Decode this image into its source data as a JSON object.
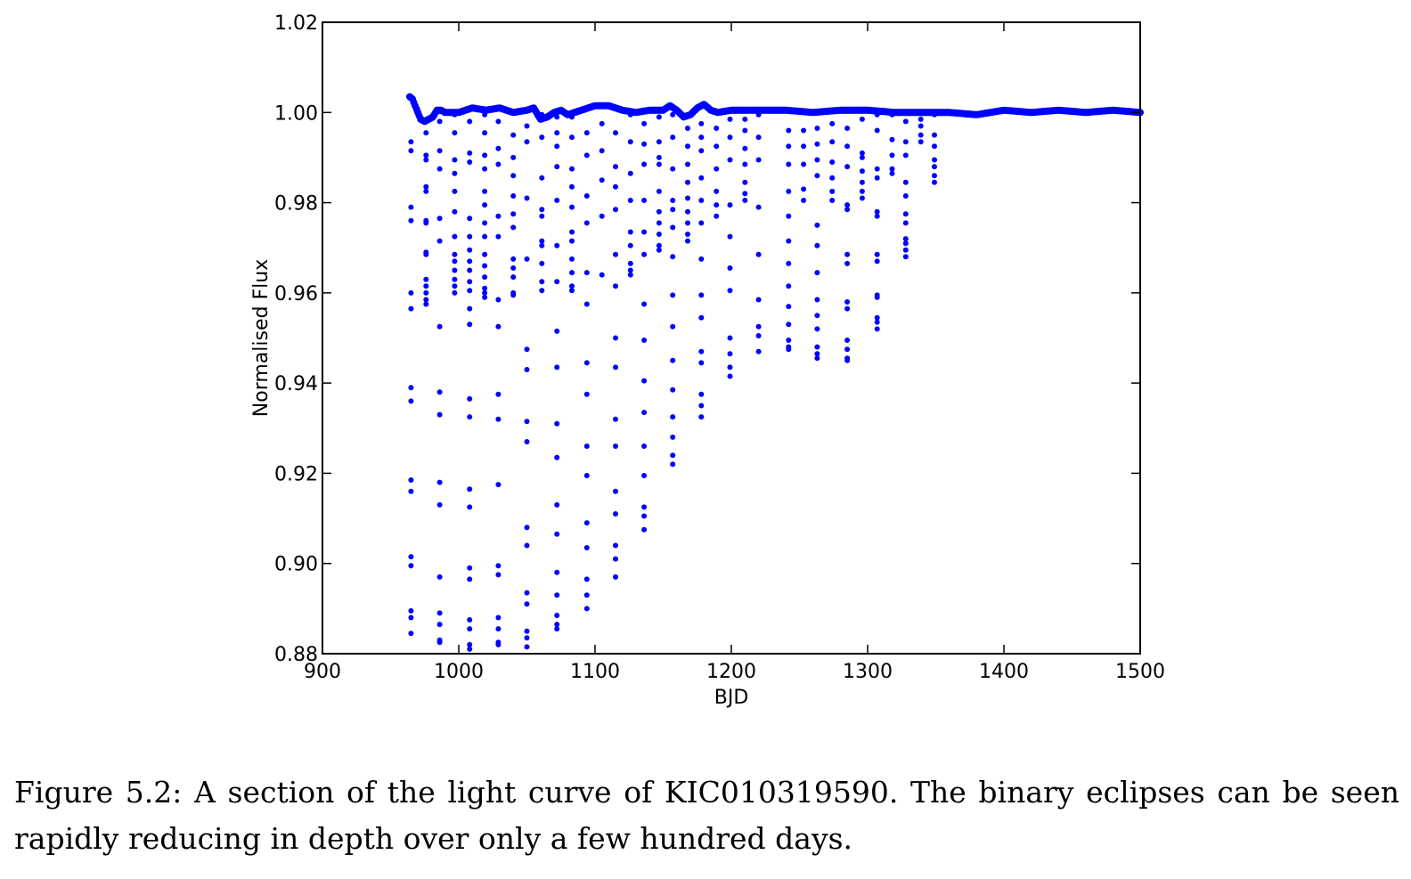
{
  "chart_data": {
    "type": "scatter",
    "xlabel": "BJD",
    "ylabel": "Normalised Flux",
    "xlim": [
      900,
      1500
    ],
    "ylim": [
      0.88,
      1.02
    ],
    "x_ticks": [
      "900",
      "1000",
      "1100",
      "1200",
      "1300",
      "1400",
      "1500"
    ],
    "y_ticks": [
      "0.88",
      "0.90",
      "0.92",
      "0.94",
      "0.96",
      "0.98",
      "1.00",
      "1.02"
    ],
    "grid": false,
    "marker_color": "#0000ff",
    "baseline": {
      "x": [
        964,
        966,
        968,
        970,
        972,
        975,
        978,
        981,
        984,
        987,
        990,
        995,
        1000,
        1010,
        1020,
        1030,
        1040,
        1050,
        1055,
        1060,
        1065,
        1070,
        1075,
        1080,
        1090,
        1100,
        1110,
        1120,
        1130,
        1140,
        1150,
        1155,
        1160,
        1165,
        1170,
        1175,
        1180,
        1185,
        1190,
        1200,
        1220,
        1240,
        1260,
        1280,
        1300,
        1320,
        1340,
        1360,
        1380,
        1400,
        1420,
        1440,
        1460,
        1480,
        1500
      ],
      "y": [
        1.0035,
        1.003,
        1.0015,
        1.0,
        0.9985,
        0.998,
        0.9985,
        0.999,
        1.0005,
        1.0005,
        1.0,
        1.0,
        1.0,
        1.001,
        1.0005,
        1.001,
        1.0,
        1.0005,
        1.001,
        0.9985,
        0.999,
        1.0,
        1.0005,
        0.9995,
        1.0005,
        1.0015,
        1.0015,
        1.0005,
        1.0,
        1.0005,
        1.0005,
        1.0015,
        1.0005,
        0.999,
        0.9995,
        1.001,
        1.0018,
        1.0005,
        1.0,
        1.0005,
        1.0005,
        1.0005,
        1.0,
        1.0005,
        1.0005,
        1.0,
        1.0,
        1.0,
        0.9995,
        1.0005,
        1.0,
        1.0005,
        1.0,
        1.0005,
        1.0
      ]
    },
    "eclipse_columns": [
      {
        "x": 965,
        "depths": [
          0.9935,
          0.9915,
          0.979,
          0.976,
          0.96,
          0.9565,
          0.939,
          0.936,
          0.9185,
          0.916,
          0.9015,
          0.8995,
          0.8895,
          0.888,
          0.8845
        ]
      },
      {
        "x": 976,
        "depths": [
          0.9955,
          0.9905,
          0.9895,
          0.9835,
          0.9825,
          0.976,
          0.9755,
          0.969,
          0.9685,
          0.963,
          0.9615,
          0.96,
          0.9585,
          0.9575
        ]
      },
      {
        "x": 986,
        "depths": [
          0.998,
          0.9915,
          0.9875,
          0.9765,
          0.9715,
          0.9525,
          0.938,
          0.933,
          0.918,
          0.913,
          0.897,
          0.889,
          0.8865,
          0.883,
          0.8825
        ]
      },
      {
        "x": 997,
        "depths": [
          0.9995,
          0.9955,
          0.9895,
          0.9865,
          0.9825,
          0.978,
          0.9725,
          0.9685,
          0.967,
          0.965,
          0.963,
          0.9615,
          0.96
        ]
      },
      {
        "x": 1008,
        "depths": [
          0.998,
          0.991,
          0.989,
          0.9765,
          0.9725,
          0.9695,
          0.967,
          0.965,
          0.9625,
          0.9605,
          0.9565,
          0.953,
          0.9365,
          0.9325,
          0.9165,
          0.9125,
          0.899,
          0.8965,
          0.8875,
          0.8855,
          0.882,
          0.881
        ]
      },
      {
        "x": 1019,
        "depths": [
          0.9995,
          0.9955,
          0.9905,
          0.9875,
          0.9825,
          0.9795,
          0.9755,
          0.9725,
          0.9685,
          0.966,
          0.9635,
          0.961,
          0.96,
          0.959
        ]
      },
      {
        "x": 1029,
        "depths": [
          0.998,
          0.992,
          0.9885,
          0.977,
          0.9725,
          0.9585,
          0.9525,
          0.9375,
          0.932,
          0.9175,
          0.8995,
          0.8975,
          0.888,
          0.8855,
          0.8825,
          0.882
        ]
      },
      {
        "x": 1040,
        "depths": [
          0.995,
          0.99,
          0.986,
          0.9815,
          0.9775,
          0.9745,
          0.9675,
          0.9655,
          0.9635,
          0.96,
          0.9595
        ]
      },
      {
        "x": 1050,
        "depths": [
          0.997,
          0.9935,
          0.981,
          0.9675,
          0.9475,
          0.943,
          0.9315,
          0.927,
          0.908,
          0.904,
          0.8935,
          0.891,
          0.885,
          0.8835,
          0.8815
        ]
      },
      {
        "x": 1061,
        "depths": [
          0.9995,
          0.9945,
          0.9855,
          0.9785,
          0.977,
          0.9715,
          0.9705,
          0.9665,
          0.9625,
          0.9605
        ]
      },
      {
        "x": 1072,
        "depths": [
          0.999,
          0.9955,
          0.9925,
          0.988,
          0.9805,
          0.9705,
          0.9625,
          0.9515,
          0.9435,
          0.931,
          0.9235,
          0.913,
          0.9065,
          0.898,
          0.893,
          0.8885,
          0.8865,
          0.8855
        ]
      },
      {
        "x": 1083,
        "depths": [
          0.999,
          0.9945,
          0.9875,
          0.9835,
          0.979,
          0.9735,
          0.9715,
          0.9675,
          0.9645,
          0.9615,
          0.9605
        ]
      },
      {
        "x": 1094,
        "depths": [
          0.9955,
          0.9905,
          0.9815,
          0.9755,
          0.9645,
          0.9575,
          0.9445,
          0.9375,
          0.926,
          0.9195,
          0.909,
          0.9035,
          0.8965,
          0.893,
          0.89
        ]
      },
      {
        "x": 1105,
        "depths": [
          0.9975,
          0.9915,
          0.985,
          0.977,
          0.964
        ]
      },
      {
        "x": 1115,
        "depths": [
          0.9955,
          0.988,
          0.9835,
          0.9785,
          0.9685,
          0.9615,
          0.95,
          0.9435,
          0.932,
          0.926,
          0.916,
          0.911,
          0.904,
          0.901,
          0.897
        ]
      },
      {
        "x": 1126,
        "depths": [
          0.9995,
          0.9935,
          0.9865,
          0.9805,
          0.9735,
          0.9705,
          0.9665,
          0.965,
          0.964
        ]
      },
      {
        "x": 1136,
        "depths": [
          0.9975,
          0.993,
          0.9885,
          0.9805,
          0.9735,
          0.9685,
          0.9575,
          0.9495,
          0.9405,
          0.9335,
          0.926,
          0.9195,
          0.9125,
          0.9105,
          0.9075
        ]
      },
      {
        "x": 1147,
        "depths": [
          0.999,
          0.9935,
          0.99,
          0.9885,
          0.9825,
          0.978,
          0.9755,
          0.973,
          0.9705,
          0.9695
        ]
      },
      {
        "x": 1157,
        "depths": [
          0.9995,
          0.9945,
          0.9875,
          0.9805,
          0.9785,
          0.9745,
          0.968,
          0.9595,
          0.9525,
          0.945,
          0.9385,
          0.9325,
          0.928,
          0.924,
          0.922
        ]
      },
      {
        "x": 1168,
        "depths": [
          0.9965,
          0.9925,
          0.9885,
          0.9845,
          0.981,
          0.978,
          0.9755,
          0.973,
          0.9715
        ]
      },
      {
        "x": 1178,
        "depths": [
          0.9975,
          0.9945,
          0.9915,
          0.9855,
          0.9805,
          0.9755,
          0.9675,
          0.9595,
          0.9545,
          0.947,
          0.9445,
          0.9375,
          0.935,
          0.9325
        ]
      },
      {
        "x": 1189,
        "depths": [
          0.9965,
          0.9925,
          0.9875,
          0.9825,
          0.9795,
          0.977
        ]
      },
      {
        "x": 1199,
        "depths": [
          0.9985,
          0.9945,
          0.9895,
          0.9795,
          0.9725,
          0.9655,
          0.9605,
          0.95,
          0.9465,
          0.9435,
          0.9415
        ]
      },
      {
        "x": 1210,
        "depths": [
          0.9985,
          0.996,
          0.992,
          0.9885,
          0.9845,
          0.982,
          0.9805
        ]
      },
      {
        "x": 1220,
        "depths": [
          0.9995,
          0.9945,
          0.9895,
          0.979,
          0.9685,
          0.9585,
          0.9525,
          0.9505,
          0.947
        ]
      },
      {
        "x": 1242,
        "depths": [
          0.996,
          0.9925,
          0.9885,
          0.9825,
          0.977,
          0.9715,
          0.9665,
          0.9615,
          0.957,
          0.953,
          0.9495,
          0.948,
          0.9475
        ]
      },
      {
        "x": 1253,
        "depths": [
          0.996,
          0.9925,
          0.9885,
          0.983,
          0.9805
        ]
      },
      {
        "x": 1263,
        "depths": [
          0.9965,
          0.993,
          0.9895,
          0.986,
          0.975,
          0.9705,
          0.9645,
          0.9585,
          0.955,
          0.952,
          0.948,
          0.9465,
          0.9455
        ]
      },
      {
        "x": 1274,
        "depths": [
          0.9975,
          0.9935,
          0.989,
          0.9855,
          0.9825,
          0.9805
        ]
      },
      {
        "x": 1285,
        "depths": [
          0.9965,
          0.9925,
          0.988,
          0.9795,
          0.9785,
          0.9685,
          0.9665,
          0.958,
          0.9565,
          0.9495,
          0.9475,
          0.9455,
          0.945
        ]
      },
      {
        "x": 1296,
        "depths": [
          0.9985,
          0.991,
          0.99,
          0.987,
          0.9845,
          0.9825,
          0.981
        ]
      },
      {
        "x": 1307,
        "depths": [
          0.9995,
          0.996,
          0.9875,
          0.9855,
          0.978,
          0.977,
          0.9685,
          0.967,
          0.9595,
          0.959,
          0.9545,
          0.9535,
          0.952
        ]
      },
      {
        "x": 1318,
        "depths": [
          0.9995,
          0.994,
          0.9905,
          0.9875,
          0.9865
        ]
      },
      {
        "x": 1328,
        "depths": [
          0.998,
          0.9935,
          0.9905,
          0.9845,
          0.9815,
          0.9775,
          0.9755,
          0.972,
          0.971,
          0.9695,
          0.968
        ]
      },
      {
        "x": 1339,
        "depths": [
          0.9985,
          0.997,
          0.995,
          0.9935
        ]
      },
      {
        "x": 1349,
        "depths": [
          0.9995,
          0.995,
          0.9925,
          0.9895,
          0.988,
          0.986,
          0.9845
        ]
      }
    ]
  },
  "caption": "Figure 5.2: A section of the light curve of KIC010319590. The binary eclipses can be seen rapidly reducing in depth over only a few hundred days."
}
